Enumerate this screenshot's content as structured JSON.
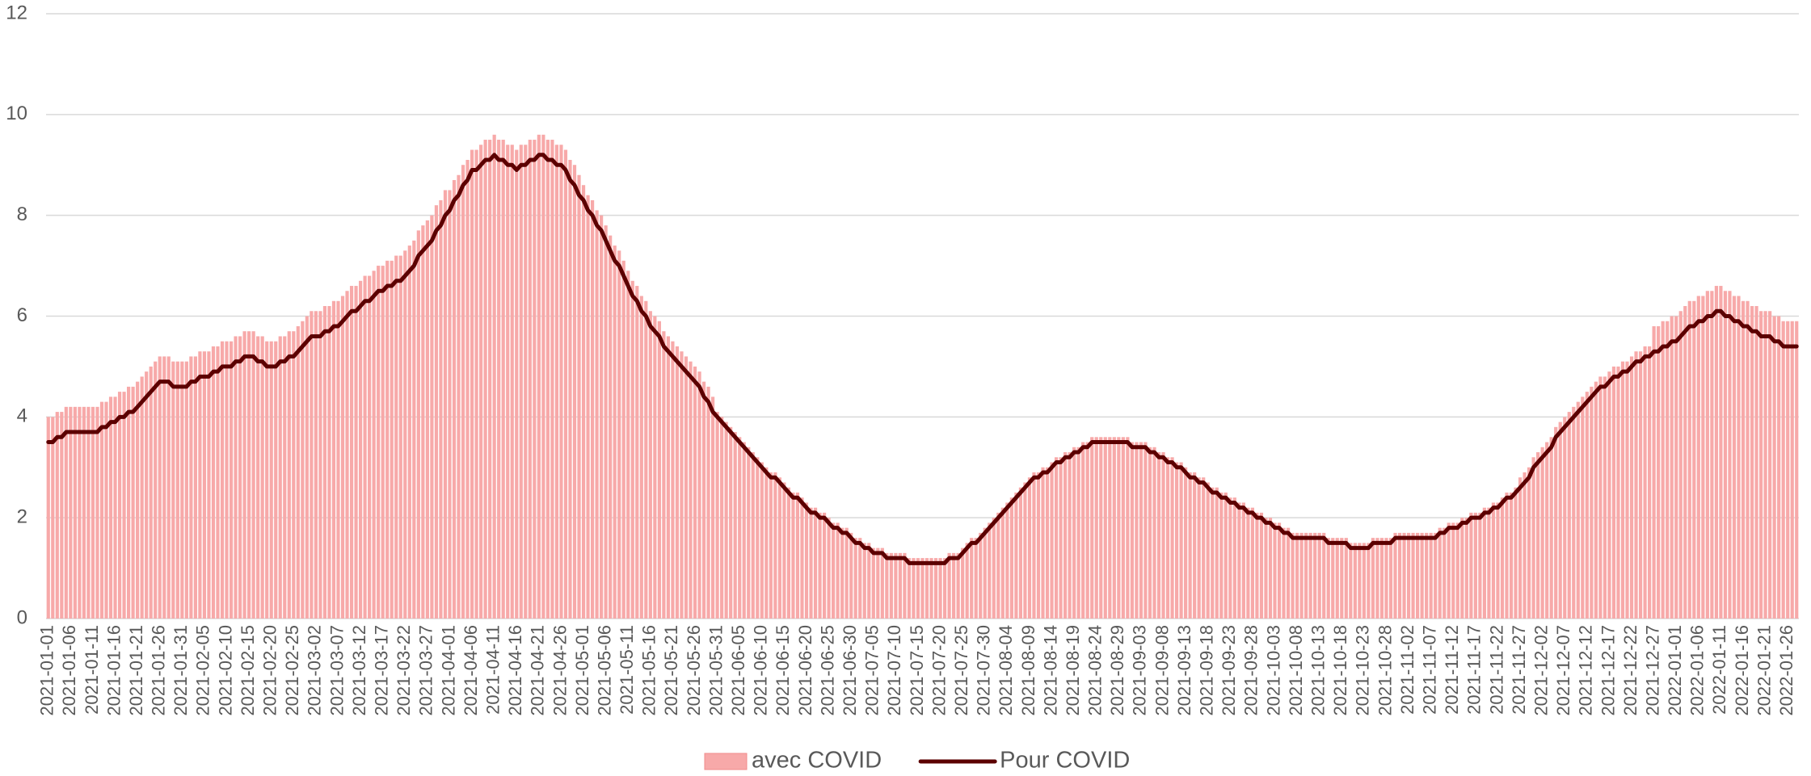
{
  "chart_data": {
    "type": "bar",
    "legend": "bottom",
    "grid": true,
    "ylim": [
      0,
      12
    ],
    "yticks": [
      0,
      2,
      4,
      6,
      8,
      10,
      12
    ],
    "categories": [
      "2021-01-01",
      null,
      null,
      null,
      null,
      "2021-01-06",
      null,
      null,
      null,
      null,
      "2021-01-11",
      null,
      null,
      null,
      null,
      "2021-01-16",
      null,
      null,
      null,
      null,
      "2021-01-21",
      null,
      null,
      null,
      null,
      "2021-01-26",
      null,
      null,
      null,
      null,
      "2021-01-31",
      null,
      null,
      null,
      null,
      "2021-02-05",
      null,
      null,
      null,
      null,
      "2021-02-10",
      null,
      null,
      null,
      null,
      "2021-02-15",
      null,
      null,
      null,
      null,
      "2021-02-20",
      null,
      null,
      null,
      null,
      "2021-02-25",
      null,
      null,
      null,
      null,
      "2021-03-02",
      null,
      null,
      null,
      null,
      "2021-03-07",
      null,
      null,
      null,
      null,
      "2021-03-12",
      null,
      null,
      null,
      null,
      "2021-03-17",
      null,
      null,
      null,
      null,
      "2021-03-22",
      null,
      null,
      null,
      null,
      "2021-03-27",
      null,
      null,
      null,
      null,
      "2021-04-01",
      null,
      null,
      null,
      null,
      "2021-04-06",
      null,
      null,
      null,
      null,
      "2021-04-11",
      null,
      null,
      null,
      null,
      "2021-04-16",
      null,
      null,
      null,
      null,
      "2021-04-21",
      null,
      null,
      null,
      null,
      "2021-04-26",
      null,
      null,
      null,
      null,
      "2021-05-01",
      null,
      null,
      null,
      null,
      "2021-05-06",
      null,
      null,
      null,
      null,
      "2021-05-11",
      null,
      null,
      null,
      null,
      "2021-05-16",
      null,
      null,
      null,
      null,
      "2021-05-21",
      null,
      null,
      null,
      null,
      "2021-05-26",
      null,
      null,
      null,
      null,
      "2021-05-31",
      null,
      null,
      null,
      null,
      "2021-06-05",
      null,
      null,
      null,
      null,
      "2021-06-10",
      null,
      null,
      null,
      null,
      "2021-06-15",
      null,
      null,
      null,
      null,
      "2021-06-20",
      null,
      null,
      null,
      null,
      "2021-06-25",
      null,
      null,
      null,
      null,
      "2021-06-30",
      null,
      null,
      null,
      null,
      "2021-07-05",
      null,
      null,
      null,
      null,
      "2021-07-10",
      null,
      null,
      null,
      null,
      "2021-07-15",
      null,
      null,
      null,
      null,
      "2021-07-20",
      null,
      null,
      null,
      null,
      "2021-07-25",
      null,
      null,
      null,
      null,
      "2021-07-30",
      null,
      null,
      null,
      null,
      "2021-08-04",
      null,
      null,
      null,
      null,
      "2021-08-09",
      null,
      null,
      null,
      null,
      "2021-08-14",
      null,
      null,
      null,
      null,
      "2021-08-19",
      null,
      null,
      null,
      null,
      "2021-08-24",
      null,
      null,
      null,
      null,
      "2021-08-29",
      null,
      null,
      null,
      null,
      "2021-09-03",
      null,
      null,
      null,
      null,
      "2021-09-08",
      null,
      null,
      null,
      null,
      "2021-09-13",
      null,
      null,
      null,
      null,
      "2021-09-18",
      null,
      null,
      null,
      null,
      "2021-09-23",
      null,
      null,
      null,
      null,
      "2021-09-28",
      null,
      null,
      null,
      null,
      "2021-10-03",
      null,
      null,
      null,
      null,
      "2021-10-08",
      null,
      null,
      null,
      null,
      "2021-10-13",
      null,
      null,
      null,
      null,
      "2021-10-18",
      null,
      null,
      null,
      null,
      "2021-10-23",
      null,
      null,
      null,
      null,
      "2021-10-28",
      null,
      null,
      null,
      null,
      "2021-11-02",
      null,
      null,
      null,
      null,
      "2021-11-07",
      null,
      null,
      null,
      null,
      "2021-11-12",
      null,
      null,
      null,
      null,
      "2021-11-17",
      null,
      null,
      null,
      null,
      "2021-11-22",
      null,
      null,
      null,
      null,
      "2021-11-27",
      null,
      null,
      null,
      null,
      "2021-12-02",
      null,
      null,
      null,
      null,
      "2021-12-07",
      null,
      null,
      null,
      null,
      "2021-12-12",
      null,
      null,
      null,
      null,
      "2021-12-17",
      null,
      null,
      null,
      null,
      "2021-12-22",
      null,
      null,
      null,
      null,
      "2021-12-27",
      null,
      null,
      null,
      null,
      "2022-01-01",
      null,
      null,
      null,
      null,
      "2022-01-06",
      null,
      null,
      null,
      null,
      "2022-01-11",
      null,
      null,
      null,
      null,
      "2022-01-16",
      null,
      null,
      null,
      null,
      "2022-01-21",
      null,
      null,
      null,
      null,
      "2022-01-26",
      null,
      null
    ],
    "series": [
      {
        "name": "avec COVID",
        "type": "bar",
        "color": "#f7a9a9",
        "values": [
          4.0,
          4.0,
          4.1,
          4.1,
          4.2,
          4.2,
          4.2,
          4.2,
          4.2,
          4.2,
          4.2,
          4.2,
          4.3,
          4.3,
          4.4,
          4.4,
          4.5,
          4.5,
          4.6,
          4.6,
          4.7,
          4.8,
          4.9,
          5.0,
          5.1,
          5.2,
          5.2,
          5.2,
          5.1,
          5.1,
          5.1,
          5.1,
          5.2,
          5.2,
          5.3,
          5.3,
          5.3,
          5.4,
          5.4,
          5.5,
          5.5,
          5.5,
          5.6,
          5.6,
          5.7,
          5.7,
          5.7,
          5.6,
          5.6,
          5.5,
          5.5,
          5.5,
          5.6,
          5.6,
          5.7,
          5.7,
          5.8,
          5.9,
          6.0,
          6.1,
          6.1,
          6.1,
          6.2,
          6.2,
          6.3,
          6.3,
          6.4,
          6.5,
          6.6,
          6.6,
          6.7,
          6.8,
          6.8,
          6.9,
          7.0,
          7.0,
          7.1,
          7.1,
          7.2,
          7.2,
          7.3,
          7.4,
          7.5,
          7.7,
          7.8,
          7.9,
          8.0,
          8.2,
          8.3,
          8.5,
          8.5,
          8.7,
          8.8,
          9.0,
          9.1,
          9.3,
          9.3,
          9.4,
          9.5,
          9.5,
          9.6,
          9.5,
          9.5,
          9.4,
          9.4,
          9.3,
          9.4,
          9.4,
          9.5,
          9.5,
          9.6,
          9.6,
          9.5,
          9.5,
          9.4,
          9.4,
          9.3,
          9.1,
          9.0,
          8.8,
          8.6,
          8.4,
          8.3,
          8.1,
          8.0,
          7.8,
          7.6,
          7.4,
          7.3,
          7.1,
          6.9,
          6.7,
          6.6,
          6.4,
          6.3,
          6.1,
          6.0,
          5.9,
          5.7,
          5.6,
          5.5,
          5.4,
          5.3,
          5.2,
          5.1,
          5.0,
          4.9,
          4.7,
          4.6,
          4.4,
          4.1,
          4.0,
          3.9,
          3.8,
          3.7,
          3.6,
          3.5,
          3.4,
          3.3,
          3.2,
          3.1,
          3.0,
          2.9,
          2.9,
          2.8,
          2.7,
          2.6,
          2.5,
          2.5,
          2.4,
          2.3,
          2.2,
          2.2,
          2.1,
          2.1,
          2.0,
          1.9,
          1.9,
          1.8,
          1.8,
          1.7,
          1.6,
          1.6,
          1.5,
          1.5,
          1.4,
          1.4,
          1.4,
          1.3,
          1.3,
          1.3,
          1.3,
          1.3,
          1.2,
          1.2,
          1.2,
          1.2,
          1.2,
          1.2,
          1.2,
          1.2,
          1.2,
          1.3,
          1.3,
          1.3,
          1.4,
          1.5,
          1.6,
          1.6,
          1.7,
          1.8,
          1.9,
          2.0,
          2.1,
          2.2,
          2.3,
          2.4,
          2.5,
          2.6,
          2.7,
          2.8,
          2.9,
          2.9,
          3.0,
          3.0,
          3.1,
          3.2,
          3.2,
          3.3,
          3.3,
          3.4,
          3.4,
          3.5,
          3.5,
          3.6,
          3.6,
          3.6,
          3.6,
          3.6,
          3.6,
          3.6,
          3.6,
          3.6,
          3.5,
          3.5,
          3.5,
          3.5,
          3.4,
          3.4,
          3.3,
          3.3,
          3.2,
          3.2,
          3.1,
          3.1,
          3.0,
          2.9,
          2.9,
          2.8,
          2.8,
          2.7,
          2.6,
          2.6,
          2.5,
          2.5,
          2.4,
          2.4,
          2.3,
          2.3,
          2.2,
          2.2,
          2.1,
          2.1,
          2.0,
          2.0,
          1.9,
          1.9,
          1.8,
          1.8,
          1.7,
          1.7,
          1.7,
          1.7,
          1.7,
          1.7,
          1.7,
          1.7,
          1.6,
          1.6,
          1.6,
          1.6,
          1.6,
          1.5,
          1.5,
          1.5,
          1.5,
          1.5,
          1.6,
          1.6,
          1.6,
          1.6,
          1.6,
          1.7,
          1.7,
          1.7,
          1.7,
          1.7,
          1.7,
          1.7,
          1.7,
          1.7,
          1.7,
          1.8,
          1.8,
          1.9,
          1.9,
          1.9,
          2.0,
          2.0,
          2.1,
          2.1,
          2.1,
          2.2,
          2.2,
          2.3,
          2.3,
          2.4,
          2.5,
          2.5,
          2.6,
          2.8,
          2.9,
          3.0,
          3.2,
          3.3,
          3.4,
          3.5,
          3.6,
          3.8,
          3.9,
          4.0,
          4.1,
          4.2,
          4.3,
          4.4,
          4.5,
          4.6,
          4.7,
          4.8,
          4.8,
          4.9,
          5.0,
          5.0,
          5.1,
          5.1,
          5.2,
          5.3,
          5.3,
          5.4,
          5.4,
          5.8,
          5.8,
          5.9,
          5.9,
          6.0,
          6.0,
          6.1,
          6.2,
          6.3,
          6.3,
          6.4,
          6.4,
          6.5,
          6.5,
          6.6,
          6.6,
          6.5,
          6.5,
          6.4,
          6.4,
          6.3,
          6.3,
          6.2,
          6.2,
          6.1,
          6.1,
          6.1,
          6.0,
          6.0,
          5.9,
          5.9,
          5.9,
          5.9
        ]
      },
      {
        "name": "Pour COVID",
        "type": "line",
        "color": "#5c0000",
        "values": [
          3.5,
          3.5,
          3.6,
          3.6,
          3.7,
          3.7,
          3.7,
          3.7,
          3.7,
          3.7,
          3.7,
          3.7,
          3.8,
          3.8,
          3.9,
          3.9,
          4.0,
          4.0,
          4.1,
          4.1,
          4.2,
          4.3,
          4.4,
          4.5,
          4.6,
          4.7,
          4.7,
          4.7,
          4.6,
          4.6,
          4.6,
          4.6,
          4.7,
          4.7,
          4.8,
          4.8,
          4.8,
          4.9,
          4.9,
          5.0,
          5.0,
          5.0,
          5.1,
          5.1,
          5.2,
          5.2,
          5.2,
          5.1,
          5.1,
          5.0,
          5.0,
          5.0,
          5.1,
          5.1,
          5.2,
          5.2,
          5.3,
          5.4,
          5.5,
          5.6,
          5.6,
          5.6,
          5.7,
          5.7,
          5.8,
          5.8,
          5.9,
          6.0,
          6.1,
          6.1,
          6.2,
          6.3,
          6.3,
          6.4,
          6.5,
          6.5,
          6.6,
          6.6,
          6.7,
          6.7,
          6.8,
          6.9,
          7.0,
          7.2,
          7.3,
          7.4,
          7.5,
          7.7,
          7.8,
          8.0,
          8.1,
          8.3,
          8.4,
          8.6,
          8.7,
          8.9,
          8.9,
          9.0,
          9.1,
          9.1,
          9.2,
          9.1,
          9.1,
          9.0,
          9.0,
          8.9,
          9.0,
          9.0,
          9.1,
          9.1,
          9.2,
          9.2,
          9.1,
          9.1,
          9.0,
          9.0,
          8.9,
          8.7,
          8.6,
          8.4,
          8.3,
          8.1,
          8.0,
          7.8,
          7.7,
          7.5,
          7.3,
          7.1,
          7.0,
          6.8,
          6.6,
          6.4,
          6.3,
          6.1,
          6.0,
          5.8,
          5.7,
          5.6,
          5.4,
          5.3,
          5.2,
          5.1,
          5.0,
          4.9,
          4.8,
          4.7,
          4.6,
          4.4,
          4.3,
          4.1,
          4.0,
          3.9,
          3.8,
          3.7,
          3.6,
          3.5,
          3.4,
          3.3,
          3.2,
          3.1,
          3.0,
          2.9,
          2.8,
          2.8,
          2.7,
          2.6,
          2.5,
          2.4,
          2.4,
          2.3,
          2.2,
          2.1,
          2.1,
          2.0,
          2.0,
          1.9,
          1.8,
          1.8,
          1.7,
          1.7,
          1.6,
          1.5,
          1.5,
          1.4,
          1.4,
          1.3,
          1.3,
          1.3,
          1.2,
          1.2,
          1.2,
          1.2,
          1.2,
          1.1,
          1.1,
          1.1,
          1.1,
          1.1,
          1.1,
          1.1,
          1.1,
          1.1,
          1.2,
          1.2,
          1.2,
          1.3,
          1.4,
          1.5,
          1.5,
          1.6,
          1.7,
          1.8,
          1.9,
          2.0,
          2.1,
          2.2,
          2.3,
          2.4,
          2.5,
          2.6,
          2.7,
          2.8,
          2.8,
          2.9,
          2.9,
          3.0,
          3.1,
          3.1,
          3.2,
          3.2,
          3.3,
          3.3,
          3.4,
          3.4,
          3.5,
          3.5,
          3.5,
          3.5,
          3.5,
          3.5,
          3.5,
          3.5,
          3.5,
          3.4,
          3.4,
          3.4,
          3.4,
          3.3,
          3.3,
          3.2,
          3.2,
          3.1,
          3.1,
          3.0,
          3.0,
          2.9,
          2.8,
          2.8,
          2.7,
          2.7,
          2.6,
          2.5,
          2.5,
          2.4,
          2.4,
          2.3,
          2.3,
          2.2,
          2.2,
          2.1,
          2.1,
          2.0,
          2.0,
          1.9,
          1.9,
          1.8,
          1.8,
          1.7,
          1.7,
          1.6,
          1.6,
          1.6,
          1.6,
          1.6,
          1.6,
          1.6,
          1.6,
          1.5,
          1.5,
          1.5,
          1.5,
          1.5,
          1.4,
          1.4,
          1.4,
          1.4,
          1.4,
          1.5,
          1.5,
          1.5,
          1.5,
          1.5,
          1.6,
          1.6,
          1.6,
          1.6,
          1.6,
          1.6,
          1.6,
          1.6,
          1.6,
          1.6,
          1.7,
          1.7,
          1.8,
          1.8,
          1.8,
          1.9,
          1.9,
          2.0,
          2.0,
          2.0,
          2.1,
          2.1,
          2.2,
          2.2,
          2.3,
          2.4,
          2.4,
          2.5,
          2.6,
          2.7,
          2.8,
          3.0,
          3.1,
          3.2,
          3.3,
          3.4,
          3.6,
          3.7,
          3.8,
          3.9,
          4.0,
          4.1,
          4.2,
          4.3,
          4.4,
          4.5,
          4.6,
          4.6,
          4.7,
          4.8,
          4.8,
          4.9,
          4.9,
          5.0,
          5.1,
          5.1,
          5.2,
          5.2,
          5.3,
          5.3,
          5.4,
          5.4,
          5.5,
          5.5,
          5.6,
          5.7,
          5.8,
          5.8,
          5.9,
          5.9,
          6.0,
          6.0,
          6.1,
          6.1,
          6.0,
          6.0,
          5.9,
          5.9,
          5.8,
          5.8,
          5.7,
          5.7,
          5.6,
          5.6,
          5.6,
          5.5,
          5.5,
          5.4,
          5.4,
          5.4,
          5.4
        ]
      }
    ]
  }
}
